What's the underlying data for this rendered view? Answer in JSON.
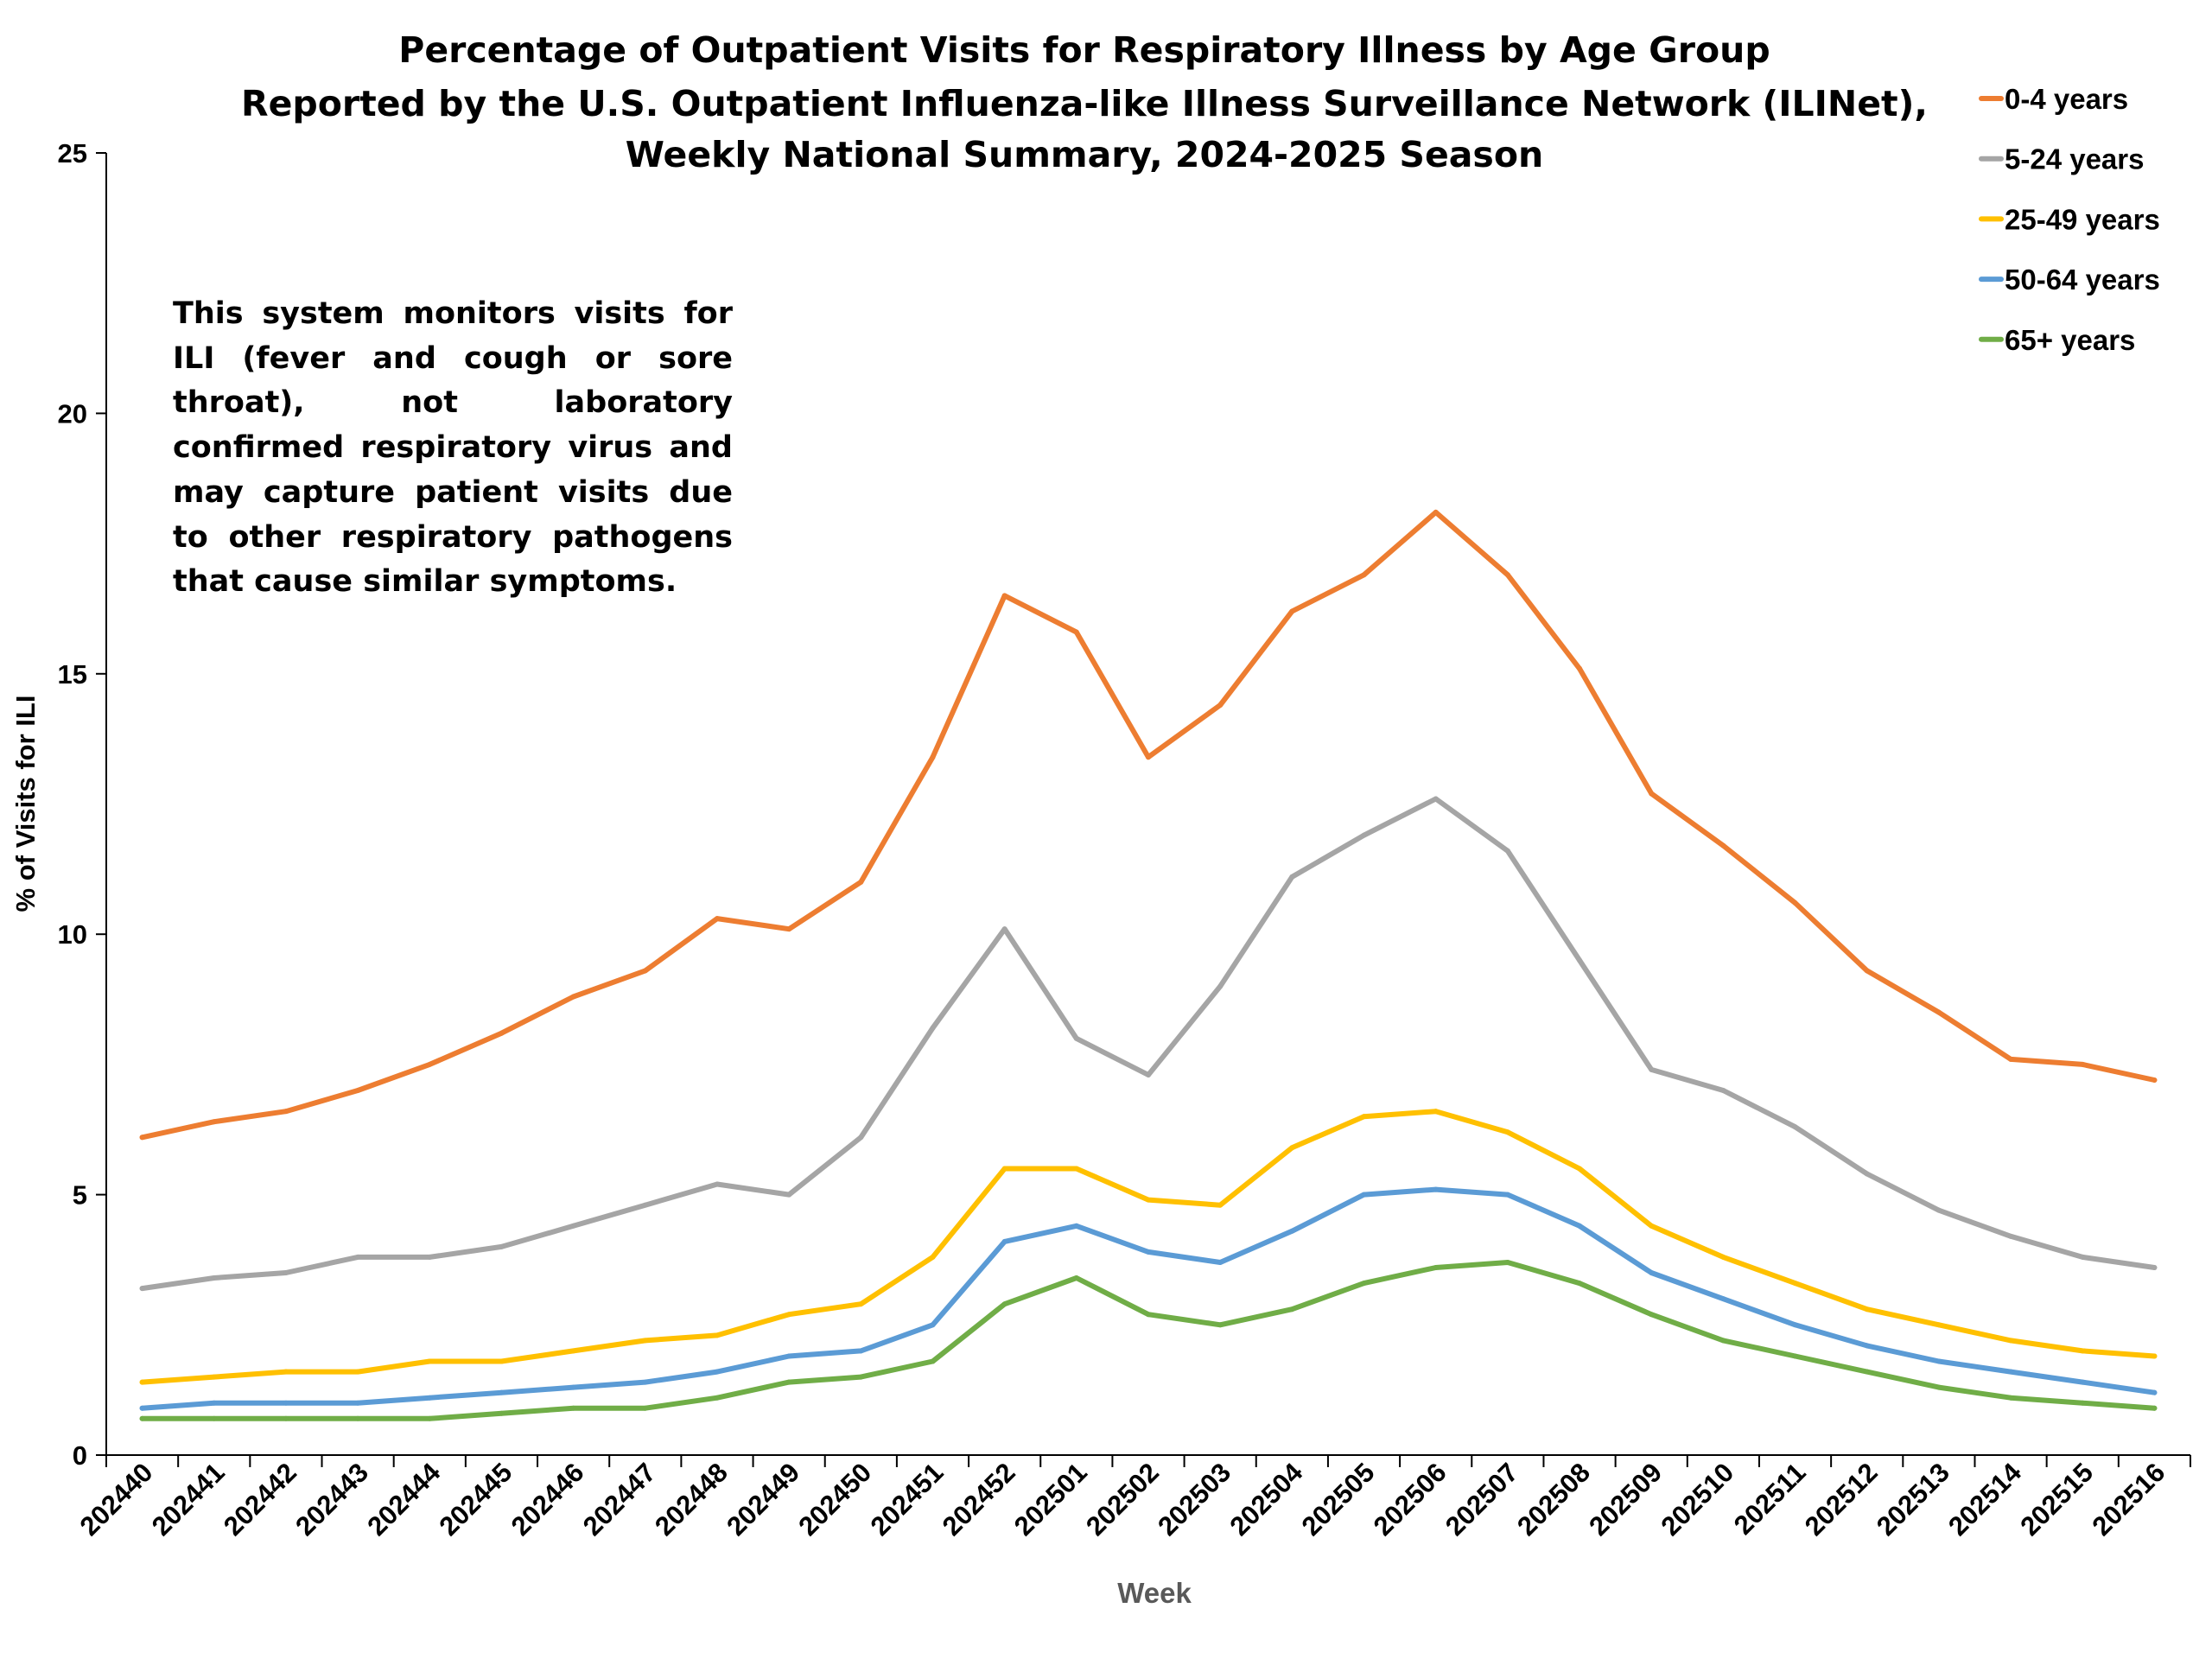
{
  "chart_data": {
    "type": "line",
    "title": [
      "Percentage of Outpatient Visits for Respiratory Illness by Age Group",
      "Reported by the U.S. Outpatient Influenza-like Illness Surveillance Network (ILINet),",
      "Weekly National Summary, 2024-2025 Season"
    ],
    "xlabel": "Week",
    "ylabel": "% of Visits for ILI",
    "ylim": [
      0,
      25
    ],
    "yticks": [
      0,
      5,
      10,
      15,
      20,
      25
    ],
    "grid": false,
    "legend_position": "top-right",
    "annotation": "This system monitors visits for ILI (fever and cough or sore throat), not laboratory confirmed respiratory virus and may capture patient visits due to other respiratory pathogens that cause similar symptoms.",
    "categories": [
      "202440",
      "202441",
      "202442",
      "202443",
      "202444",
      "202445",
      "202446",
      "202447",
      "202448",
      "202449",
      "202450",
      "202451",
      "202452",
      "202501",
      "202502",
      "202503",
      "202504",
      "202505",
      "202506",
      "202507",
      "202508",
      "202509",
      "202510",
      "202511",
      "202512",
      "202513",
      "202514",
      "202515",
      "202516"
    ],
    "series": [
      {
        "name": "0-4 years",
        "color": "#ED7D31",
        "values": [
          6.1,
          6.4,
          6.6,
          7.0,
          7.5,
          8.1,
          8.8,
          9.3,
          10.3,
          10.1,
          11.0,
          13.4,
          16.5,
          15.8,
          13.4,
          14.4,
          16.2,
          16.9,
          18.1,
          16.9,
          15.1,
          12.7,
          11.7,
          10.6,
          9.3,
          8.5,
          7.6,
          7.5,
          7.2
        ]
      },
      {
        "name": "5-24 years",
        "color": "#A5A5A5",
        "values": [
          3.2,
          3.4,
          3.5,
          3.8,
          3.8,
          4.0,
          4.4,
          4.8,
          5.2,
          5.0,
          6.1,
          8.2,
          10.1,
          8.0,
          7.3,
          9.0,
          11.1,
          11.9,
          12.6,
          11.6,
          9.5,
          7.4,
          7.0,
          6.3,
          5.4,
          4.7,
          4.2,
          3.8,
          3.6
        ]
      },
      {
        "name": "25-49 years",
        "color": "#FFC000",
        "values": [
          1.4,
          1.5,
          1.6,
          1.6,
          1.8,
          1.8,
          2.0,
          2.2,
          2.3,
          2.7,
          2.9,
          3.8,
          5.5,
          5.5,
          4.9,
          4.8,
          5.9,
          6.5,
          6.6,
          6.2,
          5.5,
          4.4,
          3.8,
          3.3,
          2.8,
          2.5,
          2.2,
          2.0,
          1.9
        ]
      },
      {
        "name": "50-64 years",
        "color": "#5B9BD5",
        "values": [
          0.9,
          1.0,
          1.0,
          1.0,
          1.1,
          1.2,
          1.3,
          1.4,
          1.6,
          1.9,
          2.0,
          2.5,
          4.1,
          4.4,
          3.9,
          3.7,
          4.3,
          5.0,
          5.1,
          5.0,
          4.4,
          3.5,
          3.0,
          2.5,
          2.1,
          1.8,
          1.6,
          1.4,
          1.2
        ]
      },
      {
        "name": "65+ years",
        "color": "#70AD47",
        "values": [
          0.7,
          0.7,
          0.7,
          0.7,
          0.7,
          0.8,
          0.9,
          0.9,
          1.1,
          1.4,
          1.5,
          1.8,
          2.9,
          3.4,
          2.7,
          2.5,
          2.8,
          3.3,
          3.6,
          3.7,
          3.3,
          2.7,
          2.2,
          1.9,
          1.6,
          1.3,
          1.1,
          1.0,
          0.9
        ]
      }
    ]
  }
}
